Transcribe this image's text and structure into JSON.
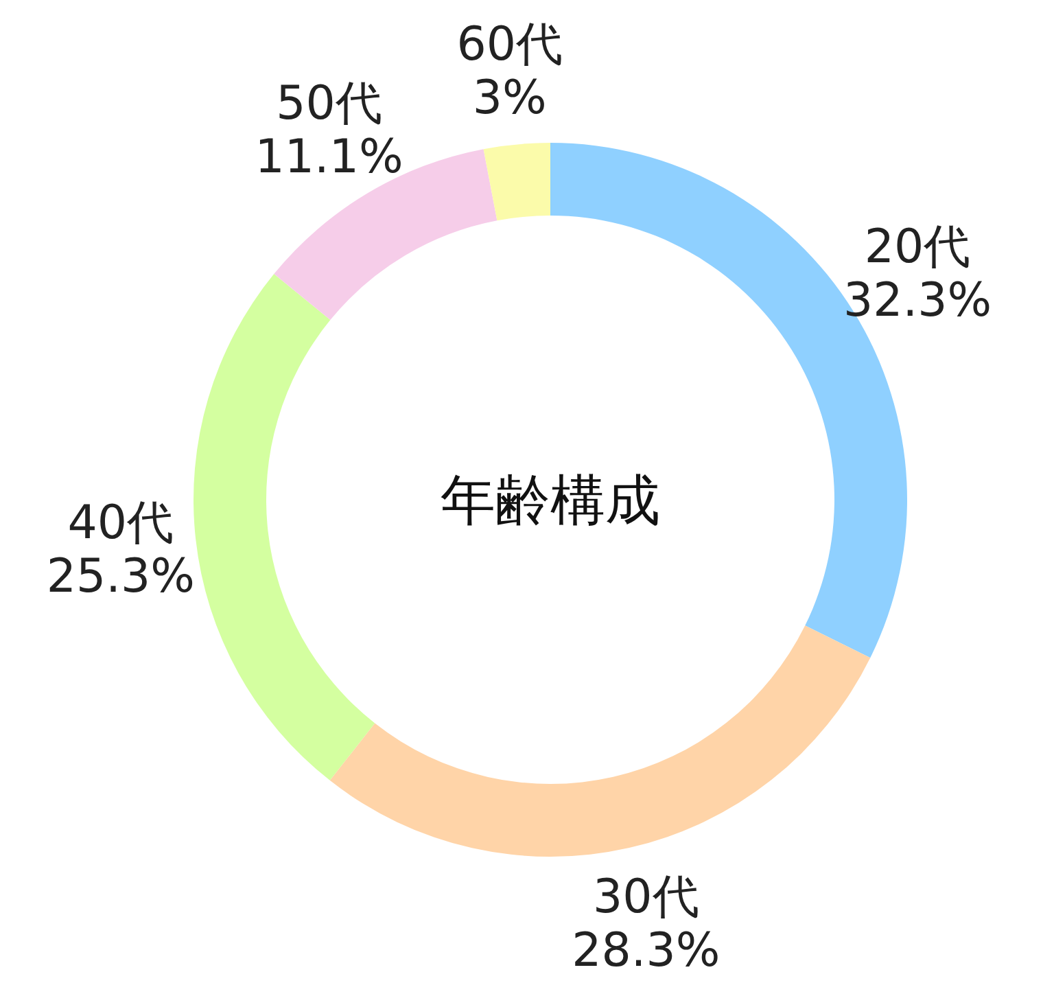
{
  "chart_data": {
    "type": "donut",
    "title": "年齢構成",
    "categories": [
      "20代",
      "30代",
      "40代",
      "50代",
      "60代"
    ],
    "values": [
      32.3,
      28.3,
      25.3,
      11.1,
      3
    ],
    "value_labels": [
      "32.3%",
      "28.3%",
      "25.3%",
      "11.1%",
      "3%"
    ],
    "colors": [
      "#8fd0ff",
      "#ffd4a8",
      "#d4ffa0",
      "#f6cde9",
      "#fbfbaa"
    ],
    "legend": false
  }
}
